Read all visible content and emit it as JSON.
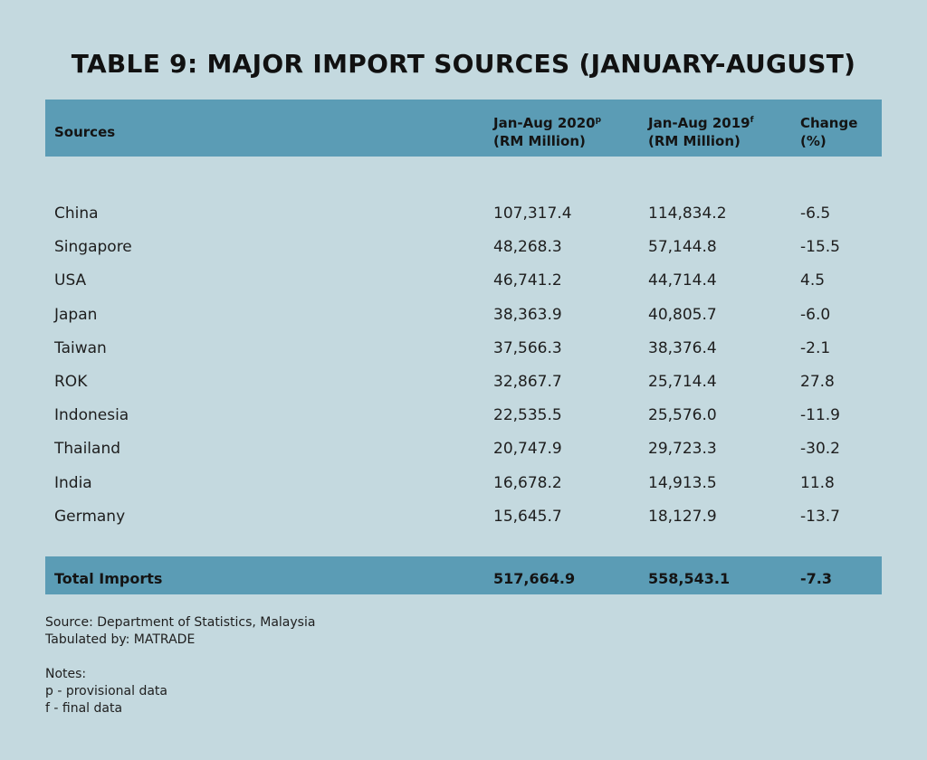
{
  "title": "TABLE 9: MAJOR IMPORT SOURCES (JANUARY-AUGUST)",
  "header": {
    "sources": "Sources",
    "col2020_line1": "Jan-Aug 2020",
    "col2020_sup": "p",
    "col2020_line2": "(RM Million)",
    "col2019_line1": "Jan-Aug 2019",
    "col2019_sup": "f",
    "col2019_line2": "(RM Million)",
    "change_line1": "Change",
    "change_line2": "(%)"
  },
  "rows": [
    {
      "source": "China",
      "v2020": "107,317.4",
      "v2019": "114,834.2",
      "change": "-6.5"
    },
    {
      "source": "Singapore",
      "v2020": "48,268.3",
      "v2019": "57,144.8",
      "change": "-15.5"
    },
    {
      "source": "USA",
      "v2020": "46,741.2",
      "v2019": "44,714.4",
      "change": "4.5"
    },
    {
      "source": "Japan",
      "v2020": "38,363.9",
      "v2019": "40,805.7",
      "change": "-6.0"
    },
    {
      "source": "Taiwan",
      "v2020": "37,566.3",
      "v2019": "38,376.4",
      "change": "-2.1"
    },
    {
      "source": "ROK",
      "v2020": "32,867.7",
      "v2019": "25,714.4",
      "change": "27.8"
    },
    {
      "source": "Indonesia",
      "v2020": "22,535.5",
      "v2019": "25,576.0",
      "change": "-11.9"
    },
    {
      "source": "Thailand",
      "v2020": "20,747.9",
      "v2019": "29,723.3",
      "change": "-30.2"
    },
    {
      "source": "India",
      "v2020": "16,678.2",
      "v2019": "14,913.5",
      "change": "11.8"
    },
    {
      "source": "Germany",
      "v2020": "15,645.7",
      "v2019": "18,127.9",
      "change": "-13.7"
    }
  ],
  "total": {
    "label": "Total Imports",
    "v2020": "517,664.9",
    "v2019": "558,543.1",
    "change": "-7.3"
  },
  "footer": {
    "source": "Source: Department of Statistics, Malaysia",
    "tabulated": "Tabulated by: MATRADE",
    "notes_title": "Notes:",
    "note_p": "p - provisional data",
    "note_f": "f - final data"
  }
}
